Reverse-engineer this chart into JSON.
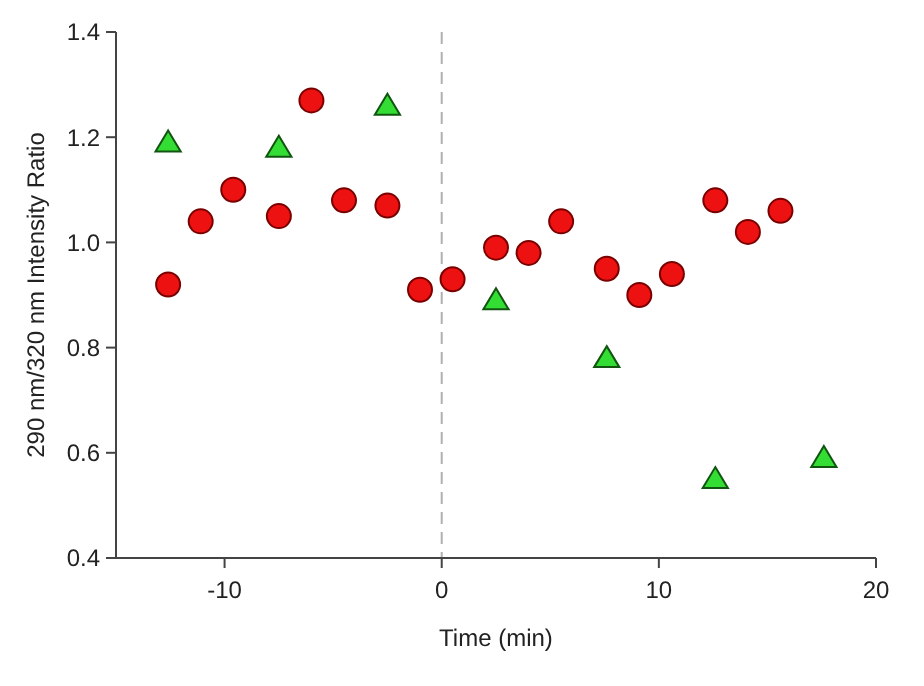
{
  "chart_data": {
    "type": "scatter",
    "xlabel": "Time (min)",
    "ylabel": "290 nm/320 nm Intensity Ratio",
    "xlim": [
      -15,
      20
    ],
    "xticks": [
      -10,
      0,
      10,
      20
    ],
    "ylim": [
      0.4,
      1.4
    ],
    "yticks": [
      0.4,
      0.6,
      0.8,
      {
        "value": 1,
        "label": "1.0"
      },
      1.2,
      1.4
    ],
    "grid": false,
    "ref_lines": [
      {
        "axis": "x",
        "value": 0,
        "color": "#b0b0b0",
        "line_style": "dashed"
      }
    ],
    "series": [
      {
        "color": "#ee1111",
        "marker": "circle",
        "x": [
          -12.6,
          -11.1,
          -9.6,
          -7.5,
          -6.0,
          -4.5,
          -2.5,
          -1.0,
          0.5,
          2.5,
          4.0,
          5.5,
          7.6,
          9.1,
          10.6,
          12.6,
          14.1,
          15.6
        ],
        "values": [
          0.92,
          1.04,
          1.1,
          1.05,
          1.27,
          1.08,
          1.07,
          0.91,
          0.93,
          0.99,
          0.98,
          1.04,
          0.95,
          0.9,
          0.94,
          1.08,
          1.02,
          1.06
        ]
      },
      {
        "color": "#33dd33",
        "marker": "triangle",
        "x": [
          -12.6,
          -7.5,
          -2.5,
          2.5,
          7.6,
          12.6,
          17.6
        ],
        "values": [
          1.19,
          1.18,
          1.26,
          0.89,
          0.78,
          0.55,
          0.59
        ]
      }
    ]
  }
}
